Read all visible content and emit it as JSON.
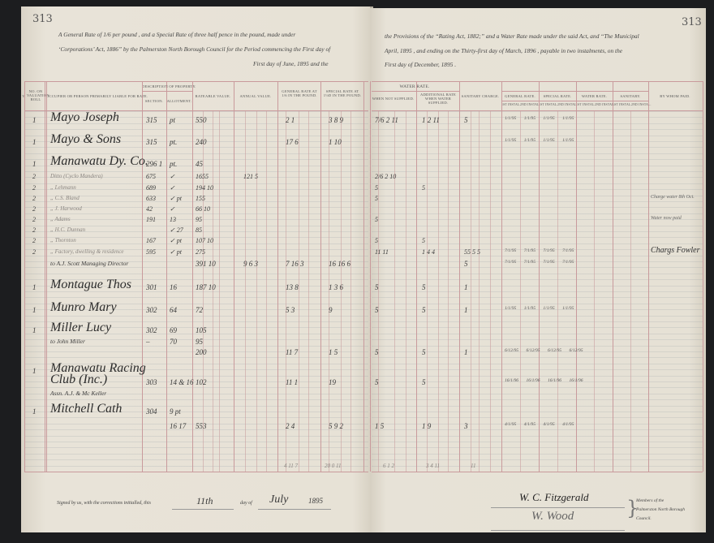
{
  "page_numbers": {
    "left": "313",
    "right": "313"
  },
  "preamble": {
    "left_line1": "A General Rate of 1/6 per pound , and a Special Rate of three half pence in the pound, made under",
    "left_line2": "‘Corporations’ Act, 1886” by the Palmerston North Borough Council for the Period commencing the First day of",
    "left_line3": "First day of June, 1895 and the",
    "right_line1": "the Provisions of the “Rating Act, 1882;” and a Water Rate made under the said Act, and “The Municipal",
    "right_line2": "April, 1895 , and ending on the Thirty-first day of March, 1896 , payable in two instalments, on the",
    "right_line3": "First day of December, 1895 ."
  },
  "headers": {
    "v": "V",
    "valuation_roll": "No. on Valuation Roll",
    "occupier": "Occupier or Person Primarily Liable for Rate.",
    "description": "Description of Property.",
    "section": "Section.",
    "allotment": "Allotment.",
    "rateable": "Rateable Value.",
    "annual": "Annual Value.",
    "general_rate": "General Rate at 1/6 in the pound.",
    "special_rate": "Special Rate at 1½d in the pound.",
    "water_rate": "Water Rate.",
    "when_not_supplied": "When Not Supplied.",
    "additional_rate": "Additional Rate When Water Supplied.",
    "sanitary_charge": "Sanitary Charge.",
    "paid_general": "General Rate.",
    "paid_special": "Special Rate.",
    "paid_water": "Water Rate.",
    "paid_sanitary": "Sanitary.",
    "first_instal": "1st Instal.",
    "second_instal": "2nd Instal.",
    "by_whom_paid": "By Whom Paid."
  },
  "rows": [
    {
      "no": "1",
      "occupier": "Mayo Joseph",
      "section": "315",
      "allotment": "pt",
      "rateable": "550",
      "annual": "",
      "general": "2  1",
      "special": "3  8  9",
      "water_ns": "7/6  2 11",
      "water_add": "1  2 11",
      "sanitary": "5",
      "instalments": "1/1/95  1/1/95  1/1/95  1/1/95",
      "by_whom": "",
      "style": "big"
    },
    {
      "no": "1",
      "occupier": "Mayo & Sons",
      "section": "315",
      "allotment": "pt.",
      "rateable": "240",
      "annual": "",
      "general": "17  6",
      "special": "1  10",
      "water_ns": "",
      "water_add": "",
      "sanitary": "",
      "instalments": "1/1/95  1/1/95  1/1/95  1/1/95",
      "by_whom": "",
      "style": "big"
    },
    {
      "no": "1",
      "occupier": "Manawatu Dy. Co.",
      "section": "296 1",
      "allotment": "pt.",
      "rateable": "45",
      "annual": "",
      "general": "",
      "special": "",
      "water_ns": "",
      "water_add": "",
      "sanitary": "",
      "instalments": "",
      "by_whom": "",
      "style": "big"
    },
    {
      "no": "2",
      "occupier": "Ditto (Cyclo Mandera)",
      "section": "675",
      "allotment": "✓",
      "rateable": "1655",
      "annual": "121  5",
      "general": "",
      "special": "",
      "water_ns": "2/6  2  10",
      "water_add": "",
      "sanitary": "",
      "instalments": "",
      "by_whom": "",
      "style": "faint"
    },
    {
      "no": "2",
      "occupier": "„ Lehmann",
      "section": "689",
      "allotment": "✓",
      "rateable": "194 10",
      "annual": "",
      "general": "",
      "special": "",
      "water_ns": "5",
      "water_add": "5",
      "sanitary": "",
      "instalments": "",
      "by_whom": "",
      "style": "faint"
    },
    {
      "no": "2",
      "occupier": "„ C.S. Bland",
      "section": "633",
      "allotment": "✓ pt",
      "rateable": "155",
      "annual": "",
      "general": "",
      "special": "",
      "water_ns": "5",
      "water_add": "",
      "sanitary": "",
      "instalments": "",
      "by_whom": "Charge water 8th Oct.",
      "style": "faint"
    },
    {
      "no": "2",
      "occupier": "„ J. Harwood",
      "section": "42",
      "allotment": "✓",
      "rateable": "66 10",
      "annual": "",
      "general": "",
      "special": "",
      "water_ns": "",
      "water_add": "",
      "sanitary": "",
      "instalments": "",
      "by_whom": "",
      "style": "faint"
    },
    {
      "no": "2",
      "occupier": "„ Adams",
      "section": "191",
      "allotment": "13",
      "rateable": "95",
      "annual": "",
      "general": "",
      "special": "",
      "water_ns": "5",
      "water_add": "",
      "sanitary": "",
      "instalments": "",
      "by_whom": "Water now paid",
      "style": "faint"
    },
    {
      "no": "2",
      "occupier": "„ H.C. Dunnan",
      "section": "",
      "allotment": "✓ 27",
      "rateable": "85",
      "annual": "",
      "general": "",
      "special": "",
      "water_ns": "",
      "water_add": "",
      "sanitary": "",
      "instalments": "",
      "by_whom": "",
      "style": "faint"
    },
    {
      "no": "2",
      "occupier": "„ Thornton",
      "section": "167",
      "allotment": "✓ pt",
      "rateable": "107 10",
      "annual": "",
      "general": "",
      "special": "",
      "water_ns": "5",
      "water_add": "5",
      "sanitary": "",
      "instalments": "",
      "by_whom": "",
      "style": "faint"
    },
    {
      "no": "2",
      "occupier": "„ Factory, dwelling & residence",
      "section": "595",
      "allotment": "✓ pt",
      "rateable": "275",
      "annual": "",
      "general": "",
      "special": "",
      "water_ns": "11  11",
      "water_add": "1  4  4",
      "sanitary": "55 5 5",
      "instalments": "7/1/95  7/1/95  7/1/95  7/1/95",
      "by_whom": "Chargs Fowler",
      "style": "faint"
    },
    {
      "no": "",
      "occupier": "to A.J. Scott Managing Director",
      "section": "",
      "allotment": "",
      "rateable": "391 10",
      "annual": "9  6  3",
      "general": "7 16  3",
      "special": "16 16  6",
      "water_ns": "",
      "water_add": "",
      "sanitary": "5",
      "instalments": "7/1/95  7/1/95  7/1/95  7/1/95",
      "by_whom": "",
      "style": "small"
    },
    {
      "no": "1",
      "occupier": "Montague Thos",
      "section": "301",
      "allotment": "16",
      "rateable": "187 10",
      "annual": "",
      "general": "13  8",
      "special": "1  3  6",
      "water_ns": "5",
      "water_add": "5",
      "sanitary": "1",
      "instalments": "",
      "by_whom": "",
      "style": "big"
    },
    {
      "no": "1",
      "occupier": "Munro Mary",
      "section": "302",
      "allotment": "64",
      "rateable": "72",
      "annual": "",
      "general": "5  3",
      "special": "9",
      "water_ns": "5",
      "water_add": "5",
      "sanitary": "1",
      "instalments": "1/1/95  1/1/95  1/1/95  1/1/95",
      "by_whom": "",
      "style": "big"
    },
    {
      "no": "1",
      "occupier": "Miller Lucy",
      "section": "302",
      "allotment": "69",
      "rateable": "105",
      "annual": "",
      "general": "",
      "special": "",
      "water_ns": "",
      "water_add": "",
      "sanitary": "",
      "instalments": "",
      "by_whom": "",
      "style": "big"
    },
    {
      "no": "",
      "occupier": "to John Miller",
      "section": "–",
      "allotment": "70",
      "rateable": "95",
      "annual": "",
      "general": "",
      "special": "",
      "water_ns": "",
      "water_add": "",
      "sanitary": "",
      "instalments": "",
      "by_whom": "",
      "style": "small"
    },
    {
      "no": "",
      "occupier": "",
      "section": "",
      "allotment": "",
      "rateable": "200",
      "annual": "",
      "general": "11  7",
      "special": "1  5",
      "water_ns": "5",
      "water_add": "5",
      "sanitary": "1",
      "instalments": "6/12/95  6/12/95  6/12/95  6/12/95",
      "by_whom": "",
      "style": "small"
    },
    {
      "no": "1",
      "occupier": "Manawatu Racing",
      "section": "",
      "allotment": "",
      "rateable": "",
      "annual": "",
      "general": "",
      "special": "",
      "water_ns": "",
      "water_add": "",
      "sanitary": "",
      "instalments": "",
      "by_whom": "",
      "style": "big"
    },
    {
      "no": "",
      "occupier": "Club (Inc.)",
      "section": "303",
      "allotment": "14 & 16",
      "rateable": "102",
      "annual": "",
      "general": "11  1",
      "special": "19",
      "water_ns": "5",
      "water_add": "5",
      "sanitary": "",
      "instalments": "16/1/96  16/1/96  16/1/96  16/1/96",
      "by_whom": "",
      "style": "big"
    },
    {
      "no": "",
      "occupier": "Assn. A.J. & Mc Keller",
      "section": "",
      "allotment": "",
      "rateable": "",
      "annual": "",
      "general": "",
      "special": "",
      "water_ns": "",
      "water_add": "",
      "sanitary": "",
      "instalments": "",
      "by_whom": "",
      "style": "small"
    },
    {
      "no": "1",
      "occupier": "Mitchell Cath",
      "section": "304",
      "allotment": "9 pt",
      "rateable": "",
      "annual": "",
      "general": "",
      "special": "",
      "water_ns": "",
      "water_add": "",
      "sanitary": "",
      "instalments": "",
      "by_whom": "",
      "style": "big"
    },
    {
      "no": "",
      "occupier": "",
      "section": "",
      "allotment": "16 17",
      "rateable": "553",
      "annual": "",
      "general": "2  4",
      "special": "5  9  2",
      "water_ns": "1  5",
      "water_add": "1  9",
      "sanitary": "3",
      "instalments": "4/1/95  4/1/95  4/1/95  4/1/95",
      "by_whom": "",
      "style": "small"
    }
  ],
  "totals": {
    "general": "4 11 7",
    "special": "20 0 11",
    "water_ns": "6 1 2",
    "water_add": "3 4 11",
    "sanitary": "11"
  },
  "footer": {
    "signed_text": "Signed by us, with the corrections initialled, this",
    "day_value": "11th",
    "day_of": "day of",
    "month_value": "July",
    "year": "1895",
    "signature1": "W. C. Fitzgerald",
    "signature2": "W. Wood",
    "members_note": "Members of the Palmerston North Borough Council."
  },
  "colors": {
    "ruling_red": "#c99a9c",
    "paper": "#e6e1d6",
    "ink": "#3a3a3a",
    "background": "#1c1d1f"
  }
}
